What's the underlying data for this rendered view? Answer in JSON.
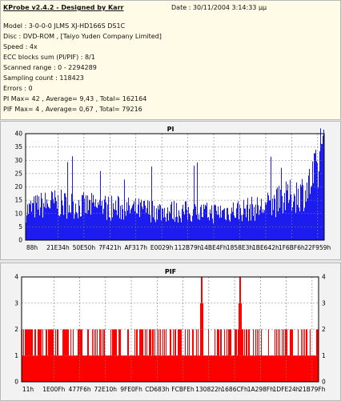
{
  "header": {
    "title": "KProbe v2.4.2 - Designed by Karr",
    "date": "Date : 30/11/2004 3:14:33 µµ",
    "lines": [
      "Model : 3-0-0-0 JLMS    XJ-HD166S        DS1C",
      "Disc : DVD-ROM ,  [Taiyo Yuden Company Limited]",
      "Speed : 4x",
      "ECC blocks sum (PI/PIF) : 8/1",
      "Scanned range : 0 - 2294289",
      "Sampling count : 118423",
      "Errors : 0",
      "PI Max= 42 , Average= 9,43 , Total= 162164",
      "PIF Max= 4 , Average= 0,67 , Total= 79216"
    ]
  },
  "colors": {
    "pi": "#1c1cf0",
    "pif": "#ff0000",
    "plot_bg": "#ffffff",
    "grid": "#7c7c7c"
  },
  "chart_data": [
    {
      "type": "bar",
      "title": "PI",
      "ylim": [
        0,
        40
      ],
      "yticks": [
        0,
        5,
        10,
        15,
        20,
        25,
        30,
        35,
        40
      ],
      "xlim": [
        0,
        2294289
      ],
      "xtick_labels": [
        "88h",
        "21E34h",
        "50E50h",
        "7F421h",
        "AF317h",
        "E0029h",
        "112B79h",
        "14BE4Fh",
        "1858E3h",
        "1BE642h",
        "1F6BF6h",
        "22F959h"
      ],
      "grid": true,
      "legend": "none",
      "profile_x": [
        0,
        100000,
        200000,
        400000,
        600000,
        800000,
        1000000,
        1200000,
        1400000,
        1600000,
        1800000,
        1950000,
        2050000,
        2150000,
        2220000,
        2294289
      ],
      "profile_y": [
        12,
        14,
        15,
        14,
        13.5,
        12.5,
        12,
        11.5,
        11,
        12,
        13,
        16,
        18,
        20,
        26,
        34
      ],
      "max": 42
    },
    {
      "type": "bar",
      "title": "PIF",
      "ylim": [
        0,
        4
      ],
      "yticks": [
        0,
        1,
        2,
        3,
        4
      ],
      "xlim": [
        0,
        2294289
      ],
      "xtick_labels": [
        "11h",
        "1E00Fh",
        "477F6h",
        "72E10h",
        "9FE0Fh",
        "CD683h",
        "FCBFEh",
        "130822h",
        "1686CFh",
        "1A298Fh",
        "1DFE24h",
        "21B79Fh"
      ],
      "grid": true,
      "legend": "none",
      "base_level": 1,
      "spikes_to_2_density": 0.45,
      "peaks": [
        {
          "x": 1390000,
          "value": 4
        },
        {
          "x": 1685000,
          "value": 4
        }
      ],
      "max": 4
    }
  ]
}
